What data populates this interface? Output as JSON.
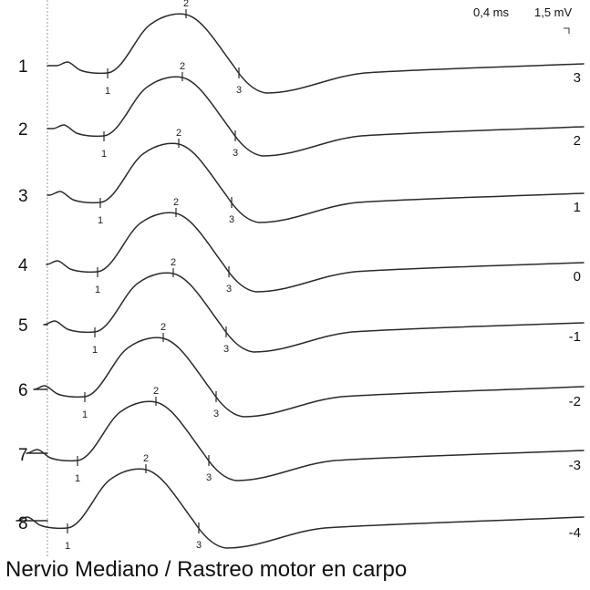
{
  "chart_data": {
    "type": "line",
    "title": "Nervio Mediano / Rastreo motor en carpo",
    "scale": {
      "time": "0,4 ms",
      "amplitude": "1,5 mV"
    },
    "marker_labels": [
      "1",
      "2",
      "3"
    ],
    "series": [
      {
        "name": "1",
        "offset_label": "3"
      },
      {
        "name": "2",
        "offset_label": "2"
      },
      {
        "name": "3",
        "offset_label": "1"
      },
      {
        "name": "4",
        "offset_label": "0"
      },
      {
        "name": "5",
        "offset_label": "-1"
      },
      {
        "name": "6",
        "offset_label": "-2"
      },
      {
        "name": "7",
        "offset_label": "-3"
      },
      {
        "name": "8",
        "offset_label": "-4"
      }
    ]
  }
}
